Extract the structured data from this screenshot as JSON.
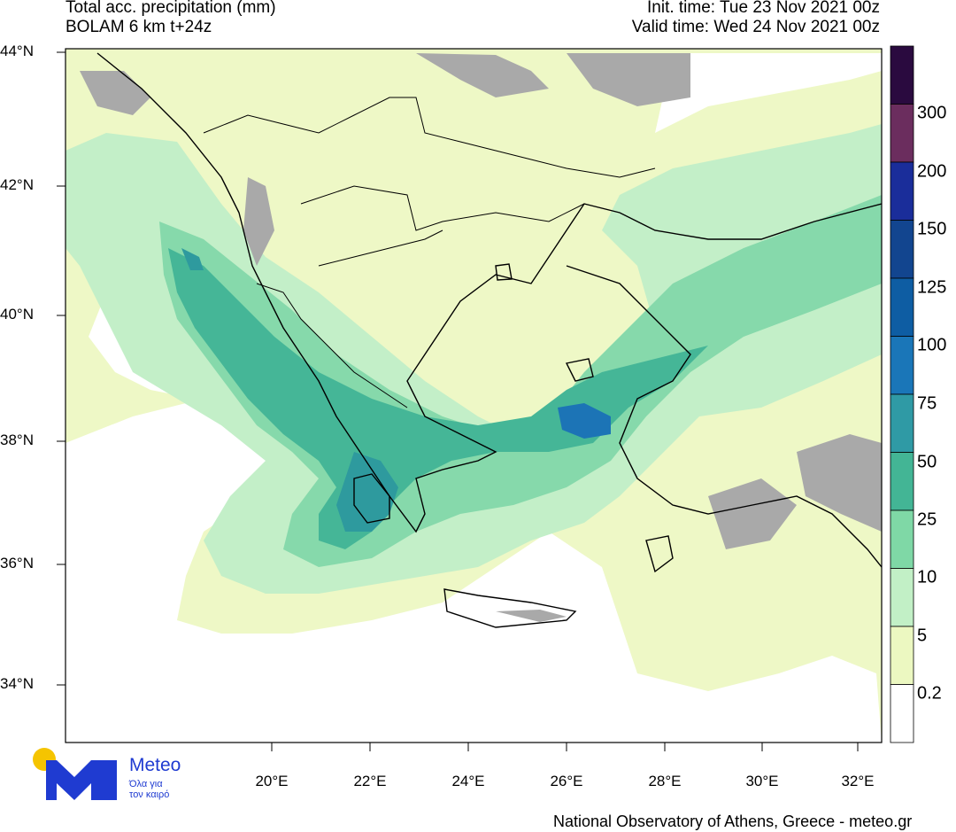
{
  "header": {
    "left_line1": "Total acc. precipitation (mm)",
    "left_line2": "BOLAM 6 km t+24z",
    "right_line1": "Init. time: Tue 23 Nov 2021 00z",
    "right_line2": "Valid time: Wed 24 Nov 2021 00z"
  },
  "axes": {
    "lat_labels": [
      "44°N",
      "42°N",
      "40°N",
      "38°N",
      "36°N",
      "34°N"
    ],
    "lon_labels": [
      "20°E",
      "22°E",
      "24°E",
      "26°E",
      "28°E",
      "30°E",
      "32°E"
    ]
  },
  "colorbar": {
    "labels": [
      "300",
      "200",
      "150",
      "125",
      "100",
      "75",
      "50",
      "25",
      "10",
      "5",
      "0.2"
    ],
    "colors": [
      "#2a0a3f",
      "#6b2d5e",
      "#1a2d9a",
      "#12458f",
      "#0e5da3",
      "#1a76b8",
      "#2f9aa5",
      "#43b595",
      "#7fd8a6",
      "#c2f0c6",
      "#ecf8c1",
      "#ffffff"
    ]
  },
  "colors": {
    "land_dry": "#a9a9a9",
    "sea_dry": "#ffffff",
    "lightest": "#eef8c6",
    "light_green": "#c3efc8",
    "green": "#86d9ab",
    "teal": "#45b697",
    "dark_teal": "#2e9a9e",
    "blue": "#1c74b6"
  },
  "logo": {
    "name": "Meteo",
    "tagline1": "Όλα για",
    "tagline2": "τον καιρό"
  },
  "footer": "National Observatory of Athens, Greece - meteo.gr"
}
